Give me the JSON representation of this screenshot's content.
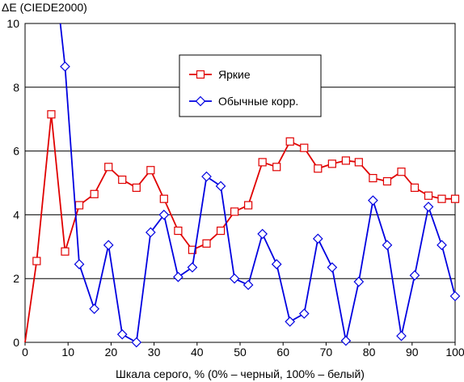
{
  "chart_data": {
    "type": "line",
    "ylabel": "ΔE (CIEDE2000)",
    "xlabel": "Шкала серого, % (0% – черный, 100% – белый)",
    "xlim": [
      0,
      100
    ],
    "ylim": [
      0,
      10
    ],
    "x_ticks": [
      "0",
      "10",
      "20",
      "30",
      "40",
      "50",
      "60",
      "70",
      "80",
      "90",
      "100"
    ],
    "y_ticks": [
      "0",
      "2",
      "4",
      "6",
      "8",
      "10"
    ],
    "grid": "horizontal",
    "legend_position": "top-center",
    "series": [
      {
        "name": "Яркие",
        "color": "#e00000",
        "marker": "square",
        "x": [
          0,
          2.7,
          6.1,
          9.3,
          12.6,
          16.1,
          19.4,
          22.6,
          25.9,
          29.2,
          32.3,
          35.6,
          38.9,
          42.2,
          45.5,
          48.7,
          51.9,
          55.2,
          58.5,
          61.6,
          64.9,
          68.1,
          71.4,
          74.6,
          77.6,
          80.9,
          84.2,
          87.5,
          90.6,
          93.8,
          96.9,
          100
        ],
        "y": [
          0,
          2.55,
          7.15,
          2.85,
          4.3,
          4.65,
          5.5,
          5.1,
          4.85,
          5.4,
          4.5,
          3.5,
          2.9,
          3.1,
          3.5,
          4.1,
          4.3,
          5.65,
          5.5,
          6.3,
          6.1,
          5.45,
          5.6,
          5.7,
          5.65,
          5.15,
          5.05,
          5.35,
          4.85,
          4.6,
          4.5,
          4.5
        ]
      },
      {
        "name": "Обычные корр.",
        "color": "#0000e0",
        "marker": "diamond",
        "x": [
          8.2,
          9.3,
          12.6,
          16.1,
          19.4,
          22.6,
          25.9,
          29.2,
          32.3,
          35.6,
          38.9,
          42.2,
          45.5,
          48.7,
          51.9,
          55.2,
          58.5,
          61.6,
          64.9,
          68.1,
          71.4,
          74.6,
          77.6,
          80.9,
          84.2,
          87.5,
          90.6,
          93.8,
          96.9,
          100
        ],
        "y": [
          10.0,
          8.65,
          2.45,
          1.05,
          3.05,
          0.25,
          0.0,
          3.45,
          4.0,
          2.05,
          2.35,
          5.2,
          4.9,
          2.0,
          1.8,
          3.4,
          2.45,
          0.65,
          0.9,
          3.25,
          2.35,
          0.05,
          1.9,
          4.45,
          3.05,
          0.2,
          2.1,
          4.25,
          3.05,
          1.45
        ]
      }
    ]
  }
}
